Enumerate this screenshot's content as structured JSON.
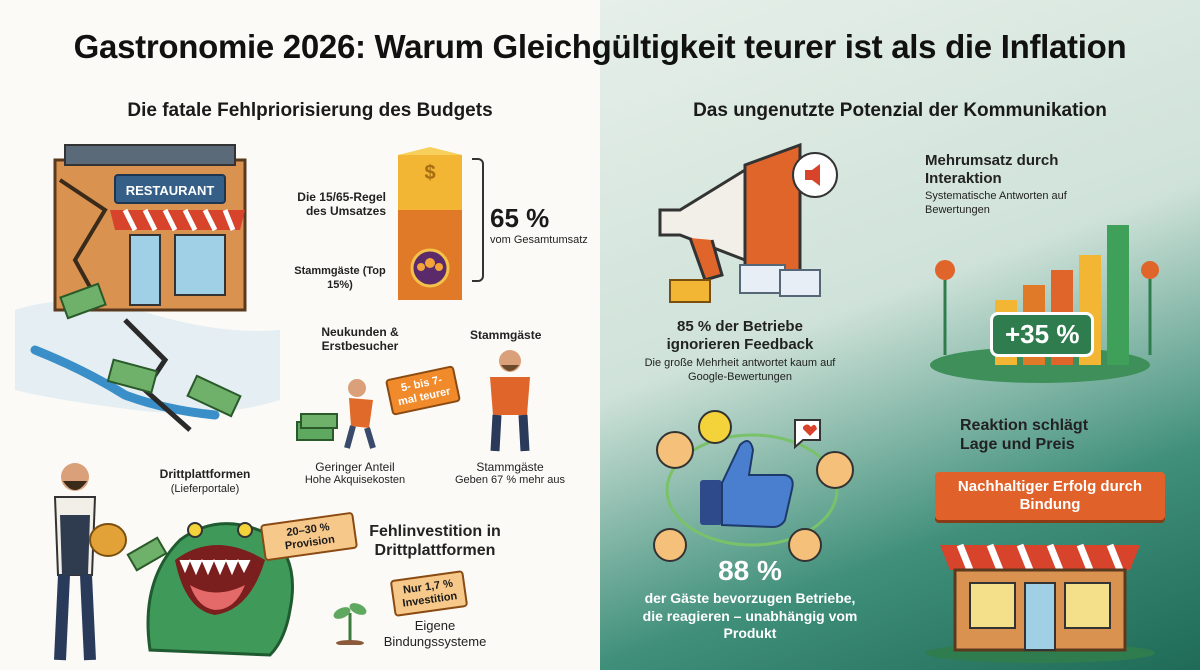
{
  "title": "Gastronomie 2026: Warum Gleichgültigkeit teurer ist als die Inflation",
  "left": {
    "heading": "Die fatale Fehlpriorisierung des Budgets",
    "restaurant_sign": "RESTAURANT",
    "rule_label": "Die 15/65-Regel des Umsatzes",
    "rule_value": "65 %",
    "rule_caption": "vom Gesamtumsatz",
    "regulars_label": "Stammgäste (Top 15%)",
    "newcust_title": "Neukunden & Erstbesucher",
    "cost_tag": "5- bis 7-mal teurer",
    "newcust_caption_1": "Geringer Anteil",
    "newcust_caption_2": "Hohe Akquisekosten",
    "regulars_title": "Stammgäste",
    "regulars_caption_1": "Stammgäste",
    "regulars_caption_2": "Geben 67 % mehr aus",
    "platforms_title": "Drittplattformen",
    "platforms_sub": "(Lieferportale)",
    "commission_tag": "20–30 % Provision",
    "misinvest_title": "Fehlinvestition in Drittplattformen",
    "invest_tag": "Nur 1,7 % Investition",
    "own_systems": "Eigene Bindungssysteme"
  },
  "right": {
    "heading": "Das ungenutzte Potenzial der Kommunikation",
    "feedback_title": "85 % der Betriebe ignorieren Feedback",
    "feedback_sub": "Die große Mehrheit antwortet kaum auf Google-Bewertungen",
    "revenue_title": "Mehrumsatz durch Interaktion",
    "revenue_sub": "Systematische Antworten auf Bewertungen",
    "revenue_value": "+35 %",
    "reaction_title": "Reaktion schlägt Lage und Preis",
    "success_banner": "Nachhaltiger Erfolg durch Bindung",
    "guests_value": "88 %",
    "guests_text": "der Gäste bevorzugen Betriebe, die reagieren – unabhängig vom Produkt"
  },
  "colors": {
    "accent": "#f08a2b",
    "green": "#2f7d4f",
    "dark_green": "#1f6b57"
  }
}
